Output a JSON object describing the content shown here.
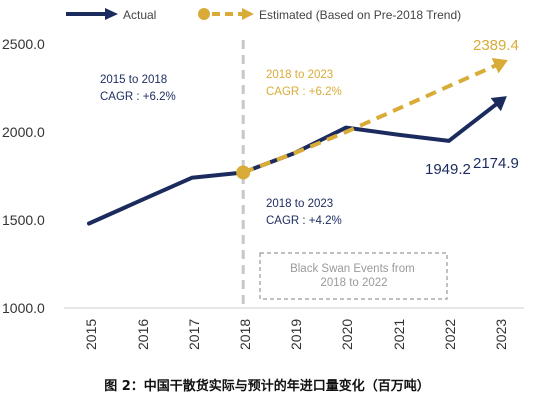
{
  "caption": "图 2：中国干散货实际与预计的年进口量变化（百万吨）",
  "chart_data": {
    "type": "line",
    "x": [
      "2015",
      "2016",
      "2017",
      "2018",
      "2019",
      "2020",
      "2021",
      "2022",
      "2023"
    ],
    "ylim": [
      1000,
      2500
    ],
    "yticks": [
      "1000.0",
      "1500.0",
      "2000.0",
      "2500.0"
    ],
    "grid": false,
    "legend_position": "top",
    "series": [
      {
        "name": "Actual",
        "color": "#1b2b5e",
        "style": "solid",
        "values": [
          1480,
          1610,
          1740,
          1770,
          1880,
          2025,
          1985,
          1949.2,
          2174.9
        ]
      },
      {
        "name": "Estimated (Based on Pre-2018 Trend)",
        "color": "#d9ac38",
        "style": "dashed",
        "x_start": "2018",
        "values": [
          null,
          null,
          null,
          1770,
          1880,
          2000,
          2130,
          2260,
          2389.4
        ]
      }
    ],
    "divider_at": "2018",
    "highlight_point": {
      "x": "2018",
      "y": 1770,
      "color": "#d9ac38"
    },
    "annotations": [
      {
        "id": "cagr_pre",
        "lines": [
          "2015 to 2018",
          "CAGR : +6.2%"
        ],
        "color": "#1b2b5e"
      },
      {
        "id": "cagr_est",
        "lines": [
          "2018 to 2023",
          "CAGR : +6.2%"
        ],
        "color": "#d9ac38"
      },
      {
        "id": "cagr_act",
        "lines": [
          "2018 to 2023",
          "CAGR : +4.2%"
        ],
        "color": "#1b2b5e"
      },
      {
        "id": "black_swan",
        "lines": [
          "Black Swan Events from",
          "2018 to 2022"
        ],
        "color": "#9a9a9a"
      }
    ],
    "value_labels": [
      {
        "id": "est_end",
        "text": "2389.4",
        "color": "#d9ac38"
      },
      {
        "id": "act_end",
        "text": "2174.9",
        "color": "#1b2b5e"
      },
      {
        "id": "act_2022",
        "text": "1949.2",
        "color": "#1b2b5e"
      }
    ]
  }
}
